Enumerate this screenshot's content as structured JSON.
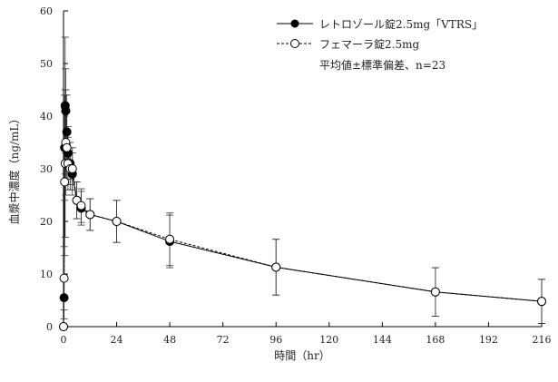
{
  "chart_data": {
    "type": "line",
    "xlabel": "時間（hr）",
    "ylabel": "血漿中濃度（ng/mL）",
    "xlim": [
      0,
      216
    ],
    "ylim": [
      0,
      60
    ],
    "xticks": [
      0,
      24,
      48,
      72,
      96,
      120,
      144,
      168,
      192,
      216
    ],
    "yticks": [
      0,
      10,
      20,
      30,
      40,
      50,
      60
    ],
    "legend_note": "平均値±標準偏差、n=23",
    "legend_position": "top-right",
    "series": [
      {
        "name": "レトロゾール錠2.5mg「VTRS」",
        "marker": "filled-circle",
        "line": "solid",
        "x": [
          0,
          0.25,
          0.5,
          0.75,
          1,
          1.5,
          2,
          3,
          4,
          6,
          8,
          12,
          24,
          48,
          96,
          168,
          216
        ],
        "y": [
          0,
          5.5,
          34,
          42,
          41,
          37,
          33,
          31,
          29,
          24,
          22.5,
          21.3,
          20,
          16.2,
          11.3,
          6.6,
          4.8
        ],
        "sd": [
          0,
          4,
          10,
          13,
          8,
          7,
          5,
          4,
          4,
          3.5,
          3.2,
          3,
          4,
          5,
          5.3,
          4.6,
          4.2
        ]
      },
      {
        "name": "フェマーラ錠2.5mg",
        "marker": "open-circle",
        "line": "dashed",
        "x": [
          0,
          0.25,
          0.5,
          0.75,
          1,
          1.5,
          2,
          3,
          4,
          6,
          8,
          12,
          24,
          48,
          96,
          168,
          216
        ],
        "y": [
          0,
          9.2,
          27.5,
          31,
          35,
          34,
          31,
          30,
          30,
          24,
          23,
          21.3,
          20,
          16.6,
          11.3,
          6.6,
          4.8
        ],
        "sd": [
          0,
          6,
          14,
          14,
          10,
          7,
          5,
          4,
          4,
          3.5,
          3.2,
          3,
          4,
          5,
          5.3,
          4.6,
          4.2
        ]
      }
    ]
  }
}
